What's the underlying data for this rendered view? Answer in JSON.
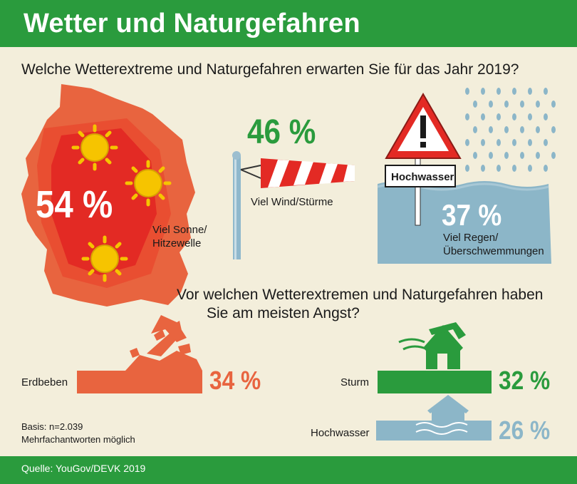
{
  "header": {
    "title": "Wetter und Naturgefahren"
  },
  "question1": "Welche Wetterextreme und Naturgefahren erwarten Sie für das Jahr 2019?",
  "question2_line1": "Vor welchen Wetterextremen und Naturgefahren haben",
  "question2_line2": "Sie am meisten Angst?",
  "sign_label": "Hochwasser",
  "basis_line1": "Basis: n=2.039",
  "basis_line2": "Mehrfachantworten möglich",
  "source": "Quelle: YouGov/DEVK 2019",
  "colors": {
    "green": "#2a9b3d",
    "orange": "#e8643f",
    "red": "#e32a24",
    "blue": "#8cb6c8",
    "sun": "#f6c400"
  },
  "chart_data": [
    {
      "type": "bar",
      "question": "Welche Wetterextreme und Naturgefahren erwarten Sie für das Jahr 2019?",
      "categories": [
        "Viel Sonne/ Hitzewelle",
        "Viel Wind/Stürme",
        "Viel Regen/ Überschwemmungen"
      ],
      "category_lines": [
        [
          "Viel Sonne/",
          "Hitzewelle"
        ],
        [
          "Viel Wind/Stürme"
        ],
        [
          "Viel Regen/",
          "Überschwemmungen"
        ]
      ],
      "values": [
        54,
        46,
        37
      ],
      "value_labels": [
        "54 %",
        "46 %",
        "37 %"
      ],
      "unit": "%"
    },
    {
      "type": "bar",
      "question": "Vor welchen Wetterextremen und Naturgefahren haben Sie am meisten Angst?",
      "categories": [
        "Erdbeben",
        "Sturm",
        "Hochwasser"
      ],
      "values": [
        34,
        32,
        26
      ],
      "value_labels": [
        "34 %",
        "32 %",
        "26 %"
      ],
      "colors": [
        "#e8643f",
        "#2a9b3d",
        "#8cb6c8"
      ],
      "unit": "%"
    }
  ]
}
